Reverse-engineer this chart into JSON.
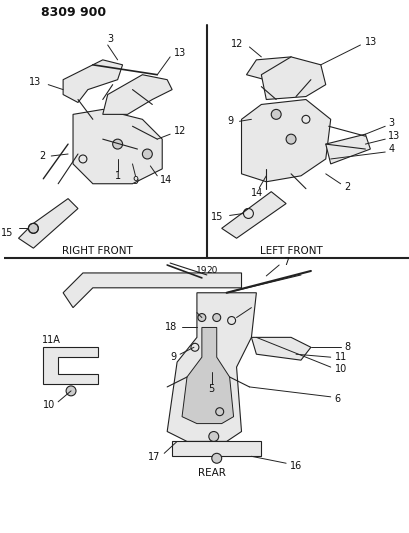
{
  "title": "8309 900",
  "bg_color": "#ffffff",
  "line_color": "#222222",
  "text_color": "#111111",
  "right_front_label": "RIGHT FRONT",
  "left_front_label": "LEFT FRONT",
  "rear_label": "REAR",
  "figsize": [
    4.1,
    5.33
  ],
  "dpi": 100
}
